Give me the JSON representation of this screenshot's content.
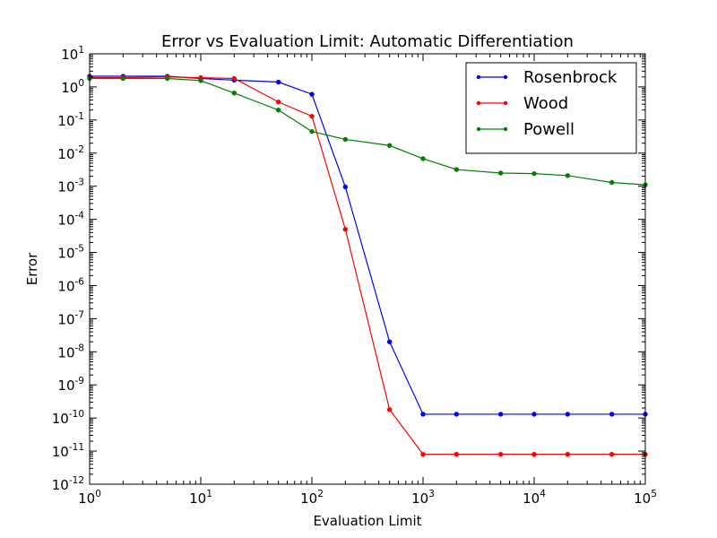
{
  "chart_data": {
    "type": "line",
    "title": "Error vs Evaluation Limit: Automatic Differentiation",
    "xlabel": "Evaluation Limit",
    "ylabel": "Error",
    "xscale": "log",
    "yscale": "log",
    "xlim": [
      1,
      100000
    ],
    "ylim": [
      1e-12,
      10
    ],
    "x_ticks": [
      {
        "base": "10",
        "exp": "0",
        "value": 1
      },
      {
        "base": "10",
        "exp": "1",
        "value": 10
      },
      {
        "base": "10",
        "exp": "2",
        "value": 100
      },
      {
        "base": "10",
        "exp": "3",
        "value": 1000
      },
      {
        "base": "10",
        "exp": "4",
        "value": 10000
      },
      {
        "base": "10",
        "exp": "5",
        "value": 100000
      }
    ],
    "y_ticks": [
      {
        "base": "10",
        "exp": "1",
        "value": 10
      },
      {
        "base": "10",
        "exp": "0",
        "value": 1
      },
      {
        "base": "10",
        "exp": "-1",
        "value": 0.1
      },
      {
        "base": "10",
        "exp": "-2",
        "value": 0.01
      },
      {
        "base": "10",
        "exp": "-3",
        "value": 0.001
      },
      {
        "base": "10",
        "exp": "-4",
        "value": 0.0001
      },
      {
        "base": "10",
        "exp": "-5",
        "value": 1e-05
      },
      {
        "base": "10",
        "exp": "-6",
        "value": 1e-06
      },
      {
        "base": "10",
        "exp": "-7",
        "value": 1e-07
      },
      {
        "base": "10",
        "exp": "-8",
        "value": 1e-08
      },
      {
        "base": "10",
        "exp": "-9",
        "value": 1e-09
      },
      {
        "base": "10",
        "exp": "-10",
        "value": 1e-10
      },
      {
        "base": "10",
        "exp": "-11",
        "value": 1e-11
      },
      {
        "base": "10",
        "exp": "-12",
        "value": 1e-12
      }
    ],
    "grid": false,
    "legend_position": "top-right",
    "x": [
      1,
      2,
      5,
      10,
      20,
      50,
      100,
      200,
      500,
      1000,
      2000,
      5000,
      10000,
      20000,
      50000,
      100000
    ],
    "series": [
      {
        "name": "Rosenbrock",
        "color": "#0000ff",
        "values": [
          2.1,
          2.1,
          2.1,
          1.8,
          1.6,
          1.4,
          0.6,
          0.00095,
          2e-08,
          1.3e-10,
          1.3e-10,
          1.3e-10,
          1.3e-10,
          1.3e-10,
          1.3e-10,
          1.3e-10
        ]
      },
      {
        "name": "Wood",
        "color": "#ff0000",
        "values": [
          1.9,
          1.9,
          2.0,
          1.9,
          1.8,
          0.35,
          0.13,
          5e-05,
          1.8e-10,
          8e-12,
          8e-12,
          8e-12,
          8e-12,
          8e-12,
          8e-12,
          8e-12
        ]
      },
      {
        "name": "Powell",
        "color": "#008000",
        "values": [
          1.8,
          1.8,
          1.8,
          1.55,
          0.65,
          0.2,
          0.045,
          0.026,
          0.017,
          0.0068,
          0.0032,
          0.0025,
          0.0024,
          0.0021,
          0.0013,
          0.0011
        ]
      }
    ]
  }
}
